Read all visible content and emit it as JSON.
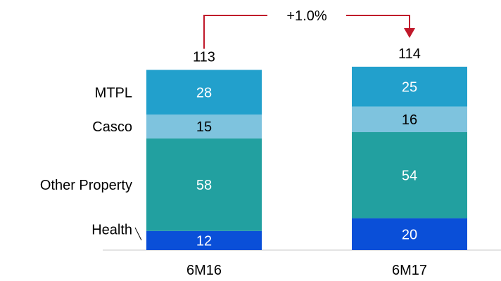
{
  "chart_data": {
    "type": "bar",
    "stacked": true,
    "categories": [
      "6M16",
      "6M17"
    ],
    "totals": [
      113,
      114
    ],
    "series": [
      {
        "name": "Health",
        "values": [
          12,
          20
        ],
        "color": "#0a4fd8",
        "label_color": "#ffffff"
      },
      {
        "name": "Other Property",
        "values": [
          58,
          54
        ],
        "color": "#22a0a0",
        "label_color": "#ffffff"
      },
      {
        "name": "Casco",
        "values": [
          15,
          16
        ],
        "color": "#7ec3de",
        "label_color": "#000000"
      },
      {
        "name": "MTPL",
        "values": [
          28,
          25
        ],
        "color": "#22a0cc",
        "label_color": "#ffffff"
      }
    ],
    "change_label": "+1.0%",
    "accent_color": "#c0182a",
    "grid": false,
    "legend": "left of first bar"
  }
}
